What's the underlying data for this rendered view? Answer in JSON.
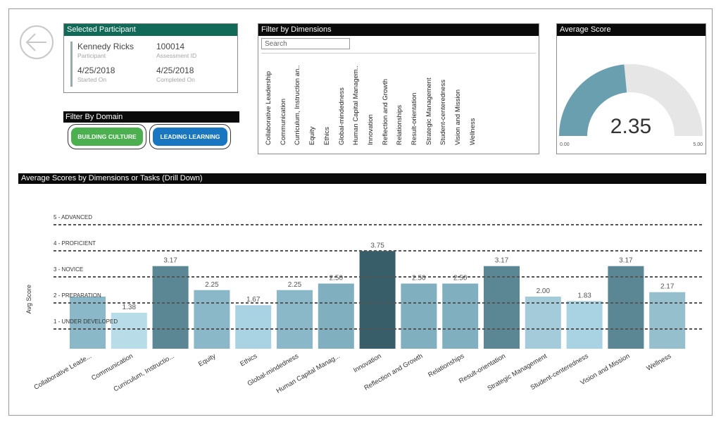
{
  "participant": {
    "header": "Selected Participant",
    "name": "Kennedy Ricks",
    "name_label": "Participant",
    "assessment_id": "100014",
    "assessment_label": "Assessment ID",
    "started": "4/25/2018",
    "started_label": "Started On",
    "completed": "4/25/2018",
    "completed_label": "Completed On"
  },
  "domain_filter": {
    "header": "Filter By Domain",
    "buttons": [
      {
        "label": "BUILDING CULTURE",
        "color": "#4caf50"
      },
      {
        "label": "LEADING LEARNING",
        "color": "#1976c0"
      }
    ]
  },
  "dimension_filter": {
    "header": "Filter by Dimensions",
    "search_placeholder": "Search",
    "items": [
      "Collaborative Leadership",
      "Communication",
      "Curriculum, Instruction an..",
      "Equity",
      "Ethics",
      "Global-mindedness",
      "Human Capital Managem..",
      "Innovation",
      "Reflection and Growth",
      "Relationships",
      "Result-orientation",
      "Strategic Management",
      "Student-centeredness",
      "Vision and Mission",
      "Wellness"
    ]
  },
  "average_score": {
    "header": "Average Score",
    "value": 2.35,
    "display": "2.35",
    "min_label": "0.00",
    "max_label": "5.00",
    "min": 0,
    "max": 5,
    "fill_color": "#6a9fb0",
    "track_color": "#e6e6e6"
  },
  "chart": {
    "header": "Average Scores by Dimensions or Tasks (Drill Down)"
  },
  "chart_data": {
    "type": "bar",
    "ylabel": "Avg Score",
    "ylim": [
      0,
      5.6
    ],
    "categories": [
      "Collaborative Leade...",
      "Communication",
      "Curriculum, Instructio...",
      "Equity",
      "Ethics",
      "Global-mindedness",
      "Human Capital Manag...",
      "Innovation",
      "Reflection and Growth",
      "Relationships",
      "Result-orientation",
      "Strategic Management",
      "Student-centeredness",
      "Vision and Mission",
      "Wellness"
    ],
    "values": [
      2.0,
      1.38,
      3.17,
      2.25,
      1.67,
      2.25,
      2.5,
      3.75,
      2.5,
      2.5,
      3.17,
      2.0,
      1.83,
      3.17,
      2.17
    ],
    "value_labels": [
      "",
      "1.38",
      "3.17",
      "2.25",
      "1.67",
      "2.25",
      "2.50",
      "3.75",
      "2.50",
      "2.50",
      "3.17",
      "2.00",
      "1.83",
      "3.17",
      "2.17"
    ],
    "colors": [
      "#8ab8c8",
      "#b8dce8",
      "#5b8794",
      "#8ab8c8",
      "#a9d2e2",
      "#8ab8c8",
      "#80afbf",
      "#385e69",
      "#80afbf",
      "#80afbf",
      "#5b8794",
      "#a3cbd9",
      "#a9d2e2",
      "#5b8794",
      "#95bfcd"
    ],
    "reference_lines": [
      {
        "label": "5 - ADVANCED",
        "value": 5
      },
      {
        "label": "4 - PROFICIENT",
        "value": 4
      },
      {
        "label": "3 - NOVICE",
        "value": 3
      },
      {
        "label": "2 - PREPARATION",
        "value": 2
      },
      {
        "label": "1 - UNDER DEVELOPED",
        "value": 1
      }
    ]
  }
}
